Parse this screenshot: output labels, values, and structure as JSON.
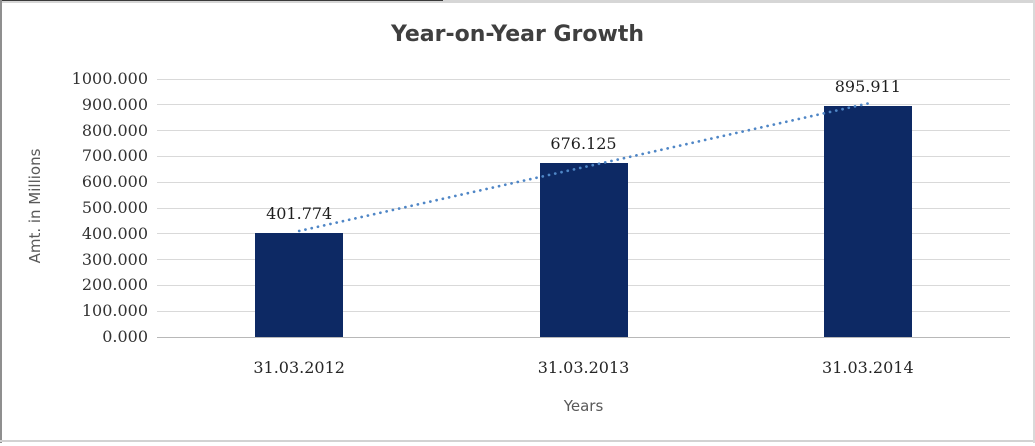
{
  "chart_data": {
    "type": "bar",
    "title": "Year-on-Year Growth",
    "xlabel": "Years",
    "ylabel": "Amt. in Millions",
    "categories": [
      "31.03.2012",
      "31.03.2013",
      "31.03.2014"
    ],
    "values": [
      401.774,
      676.125,
      895.911
    ],
    "data_labels": [
      "401.774",
      "676.125",
      "895.911"
    ],
    "ylim": [
      0,
      1000
    ],
    "ytick_step": 100,
    "ytick_labels": [
      "0.000",
      "100.000",
      "200.000",
      "300.000",
      "400.000",
      "500.000",
      "600.000",
      "700.000",
      "800.000",
      "900.000",
      "1000.000"
    ],
    "grid": true,
    "legend": "none",
    "bar_color": "#0d2964",
    "gridline_color": "#d9d9d9",
    "axis_line_color": "#b8b8b8",
    "trendline": {
      "type": "linear",
      "style": "dotted",
      "color": "#4f86c6"
    }
  }
}
